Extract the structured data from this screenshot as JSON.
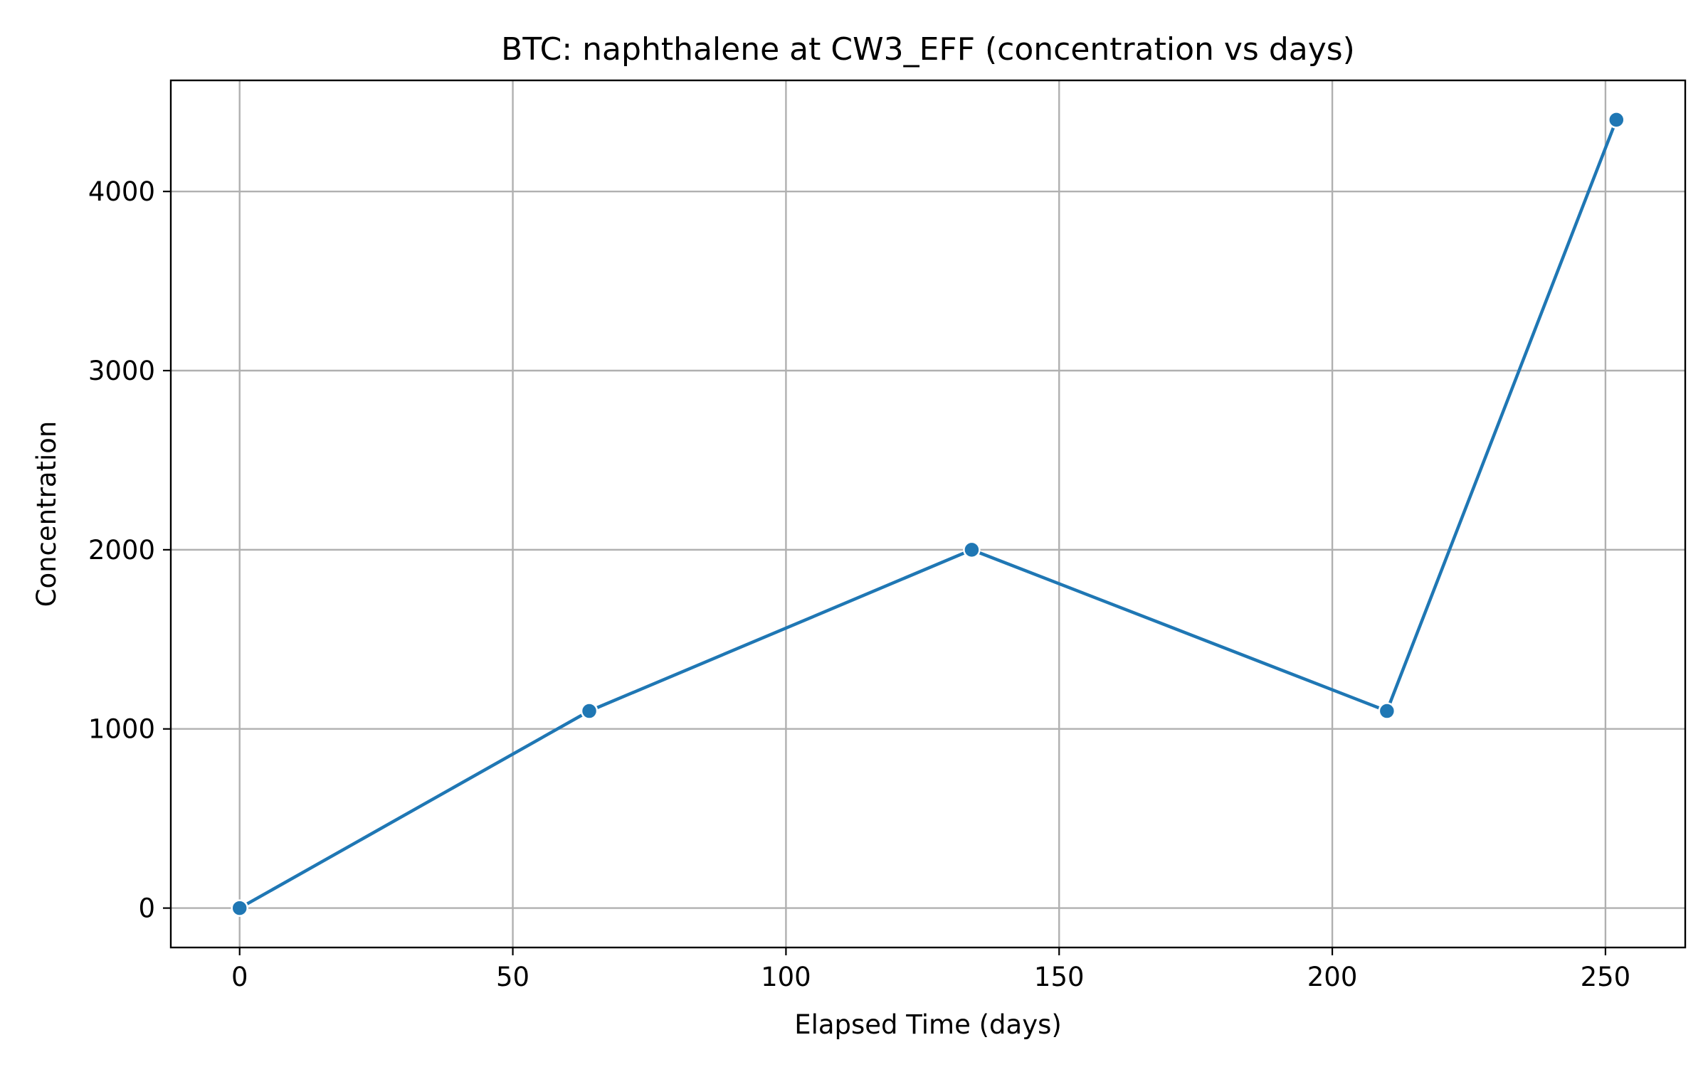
{
  "chart_data": {
    "type": "line",
    "title": "BTC: naphthalene at CW3_EFF (concentration vs days)",
    "xlabel": "Elapsed Time (days)",
    "ylabel": "Concentration",
    "xlim": [
      -12.6,
      264.6
    ],
    "ylim": [
      -220,
      4620
    ],
    "xticks": [
      0,
      50,
      100,
      150,
      200,
      250
    ],
    "yticks": [
      0,
      1000,
      2000,
      3000,
      4000
    ],
    "grid": true,
    "legend": "none",
    "series": [
      {
        "color": "#1f77b4",
        "marker": "circle",
        "x": [
          0,
          64,
          134,
          210,
          252
        ],
        "y": [
          0,
          1100,
          2000,
          1100,
          4400
        ]
      }
    ]
  }
}
